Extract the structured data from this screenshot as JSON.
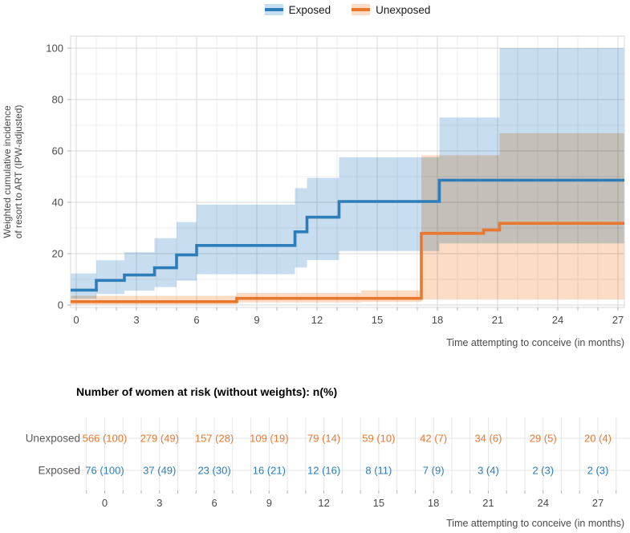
{
  "legend": {
    "items": [
      {
        "label": "Exposed",
        "line_color": "#2d7dbb",
        "fill_color": "#c8def0"
      },
      {
        "label": "Unexposed",
        "line_color": "#e9782f",
        "fill_color": "#fcdcc5"
      }
    ]
  },
  "chart_data": {
    "type": "line",
    "subtype": "step-cumulative-incidence-with-confidence-bands",
    "title": "",
    "xlabel": "Time attempting to conceive (in months)",
    "ylabel": "Weighted cumulative incidence\nof resort to ART (IPW-adjusted)",
    "xlim": [
      0,
      27
    ],
    "ylim": [
      0,
      100
    ],
    "xticks_major": [
      0,
      3,
      6,
      9,
      12,
      15,
      18,
      21,
      24,
      27
    ],
    "xticks_minor_every": 1,
    "yticks_major": [
      0,
      20,
      40,
      60,
      80,
      100
    ],
    "yticks_minor_every": 10,
    "grid": true,
    "legend_position": "top",
    "series": [
      {
        "name": "Exposed",
        "color": "#2d7dbb",
        "band_color": "#c8def0",
        "times": [
          0,
          1,
          2.4,
          3.9,
          5,
          6,
          10.9,
          11.5,
          13.1,
          18.1,
          21.1,
          27
        ],
        "estimate": [
          5.8,
          9.6,
          11.7,
          14.5,
          19.5,
          23.2,
          28.5,
          34.2,
          40.3,
          48.6,
          48.6,
          48.6
        ],
        "ci_lower": [
          2.5,
          4.3,
          5.6,
          7,
          9.5,
          12,
          14.6,
          17.5,
          21,
          24,
          24,
          24
        ],
        "ci_upper": [
          12.3,
          17.4,
          20.6,
          26,
          32.3,
          39.1,
          45.5,
          49.5,
          57.5,
          73,
          100,
          100
        ]
      },
      {
        "name": "Unexposed",
        "color": "#e9782f",
        "band_color": "#fcdcc5",
        "times": [
          0,
          8,
          14.2,
          17.2,
          20.3,
          21.1,
          27
        ],
        "estimate": [
          1.3,
          2.6,
          2.6,
          27.9,
          29.2,
          31.8,
          31.8
        ],
        "ci_lower": [
          0.2,
          1,
          1.2,
          2.2,
          2.2,
          2.2,
          2.2
        ],
        "ci_upper": [
          3.6,
          4.7,
          5.7,
          58.3,
          58.3,
          66.9,
          66.9
        ]
      }
    ]
  },
  "risk_table": {
    "title": "Number of women at risk (without weights): n(%)",
    "xlabel": "Time attempting to conceive (in months)",
    "times": [
      0,
      3,
      6,
      9,
      12,
      15,
      18,
      21,
      24,
      27
    ],
    "rows": [
      {
        "label": "Unexposed",
        "color": "#e9782f",
        "values": [
          "566 (100)",
          "279 (49)",
          "157 (28)",
          "109 (19)",
          "79 (14)",
          "59 (10)",
          "42 (7)",
          "34 (6)",
          "29 (5)",
          "20 (4)"
        ]
      },
      {
        "label": "Exposed",
        "color": "#2d7dbb",
        "values": [
          "76 (100)",
          "37 (49)",
          "23 (30)",
          "16 (21)",
          "12 (16)",
          "8 (11)",
          "7 (9)",
          "3 (4)",
          "2 (3)",
          "2 (3)"
        ]
      }
    ]
  },
  "colors": {
    "grid_major": "#d8d8d8",
    "grid_minor": "#ececec",
    "panel_border": "#d8d8d8",
    "axis_text": "#4a4a4a",
    "tick": "#b3b3b3",
    "row_label": "#5a5a5a",
    "background": "#ffffff"
  }
}
